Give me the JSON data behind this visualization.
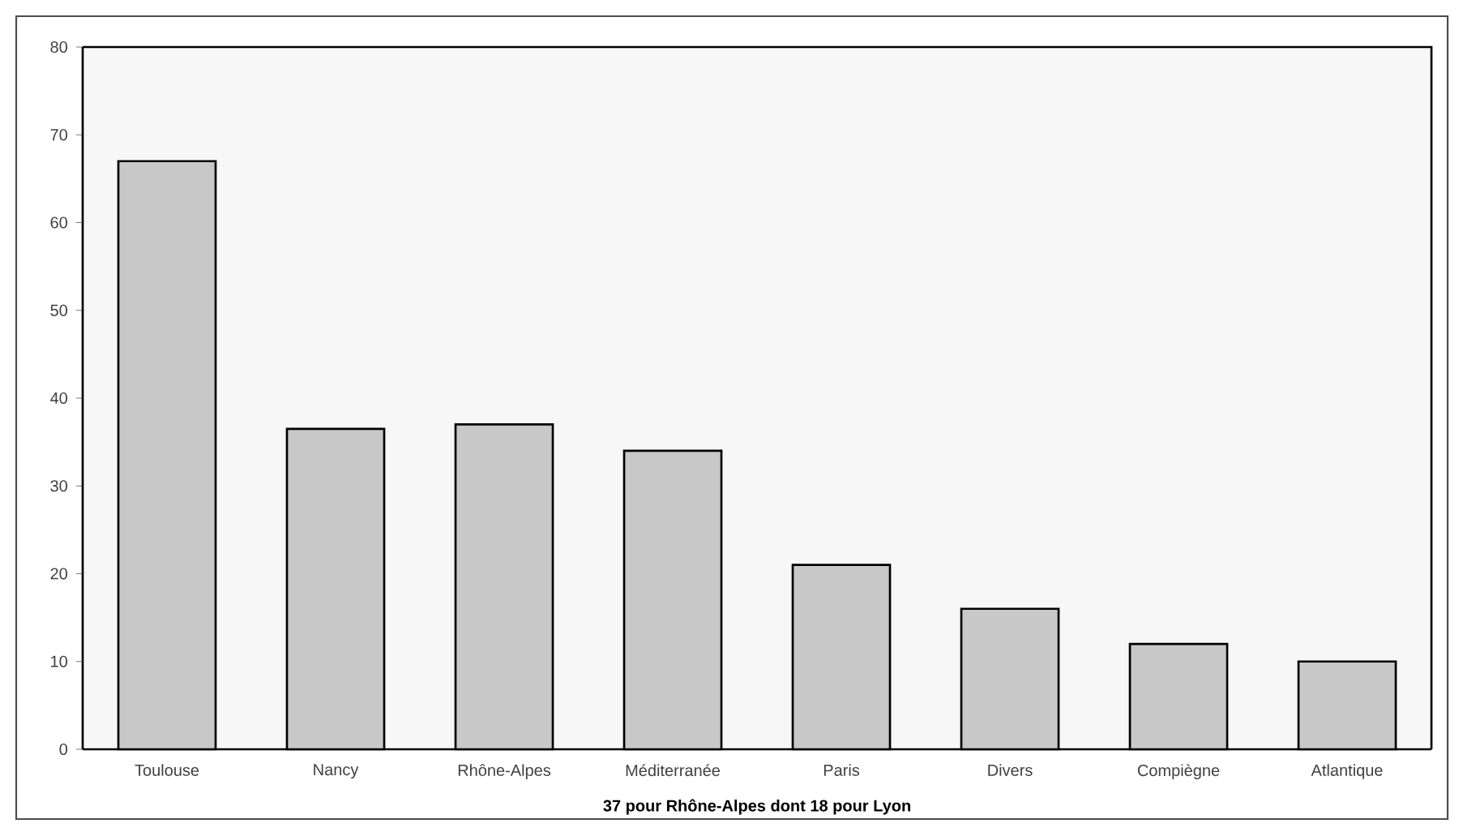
{
  "chart_data": {
    "type": "bar",
    "categories": [
      "Toulouse",
      "Nancy",
      "Rhône-Alpes",
      "Méditerranée",
      "Paris",
      "Divers",
      "Compiègne",
      "Atlantique"
    ],
    "values": [
      67,
      36.5,
      37,
      34,
      21,
      16,
      12,
      10
    ],
    "color": "#c8c8c8",
    "xlabel": "**37 pour Rhône-Alpes dont 18 pour Lyon**",
    "ylim": [
      0,
      80
    ],
    "yticks": [
      0,
      10,
      20,
      30,
      40,
      50,
      60,
      70,
      80
    ]
  }
}
